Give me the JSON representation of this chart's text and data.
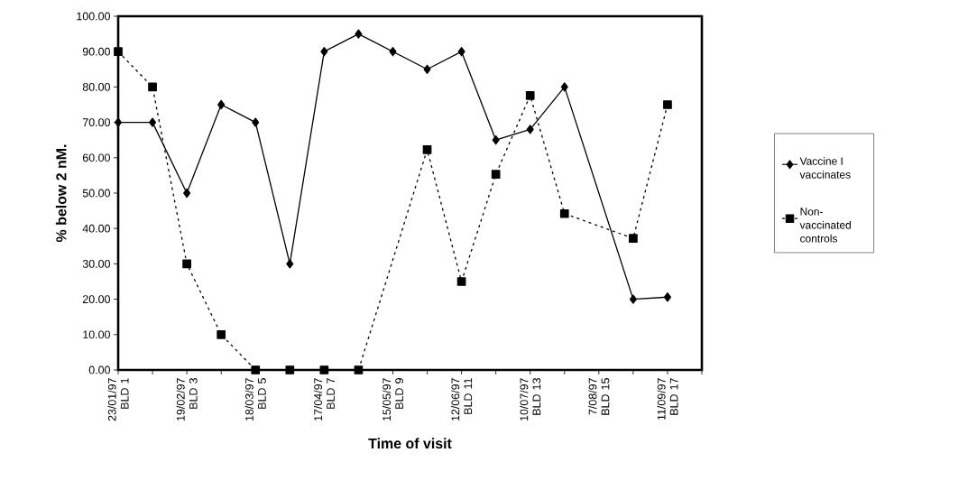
{
  "chart_data": {
    "type": "line",
    "xlabel": "Time of visit",
    "ylabel": "% below 2 nM.",
    "categories": [
      "23/01/97 BLD 1",
      null,
      "19/02/97 BLD 3",
      null,
      "18/03/97 BLD 5",
      null,
      "17/04/97 BLD 7",
      null,
      "15/05/97 BLD 9",
      null,
      "12/06/97 BLD 11",
      null,
      "10/07/97 BLD 13",
      null,
      "7/08/97 BLD 15",
      null,
      "11/09/97 BLD 17",
      null
    ],
    "series": [
      {
        "name": "Vaccine I vaccinates",
        "color": "#000000",
        "marker": "diamond",
        "line_style": "solid",
        "values": [
          70,
          70,
          50,
          75,
          70,
          30,
          90,
          95,
          90,
          85,
          90,
          65,
          68,
          80,
          null,
          20,
          20.6,
          null
        ]
      },
      {
        "name": "Non-vaccinated controls",
        "color": "#000000",
        "marker": "square",
        "line_style": "dashed",
        "values": [
          90,
          80,
          30,
          10,
          0,
          0,
          0,
          0,
          null,
          62.3,
          25,
          55.3,
          77.6,
          44.2,
          null,
          37.2,
          75,
          null
        ]
      }
    ],
    "ylim": [
      0,
      100
    ],
    "yticks": [
      {
        "value": 0,
        "label": "0.00"
      },
      {
        "value": 10,
        "label": "10.00"
      },
      {
        "value": 20,
        "label": "20.00"
      },
      {
        "value": 30,
        "label": "30.00"
      },
      {
        "value": 40,
        "label": "40.00"
      },
      {
        "value": 50,
        "label": "50.00"
      },
      {
        "value": 60,
        "label": "60.00"
      },
      {
        "value": 70,
        "label": "70.00"
      },
      {
        "value": 80,
        "label": "80.00"
      },
      {
        "value": 90,
        "label": "90.00"
      },
      {
        "value": 100,
        "label": "100.00"
      }
    ],
    "grid": false,
    "legend": "right"
  }
}
